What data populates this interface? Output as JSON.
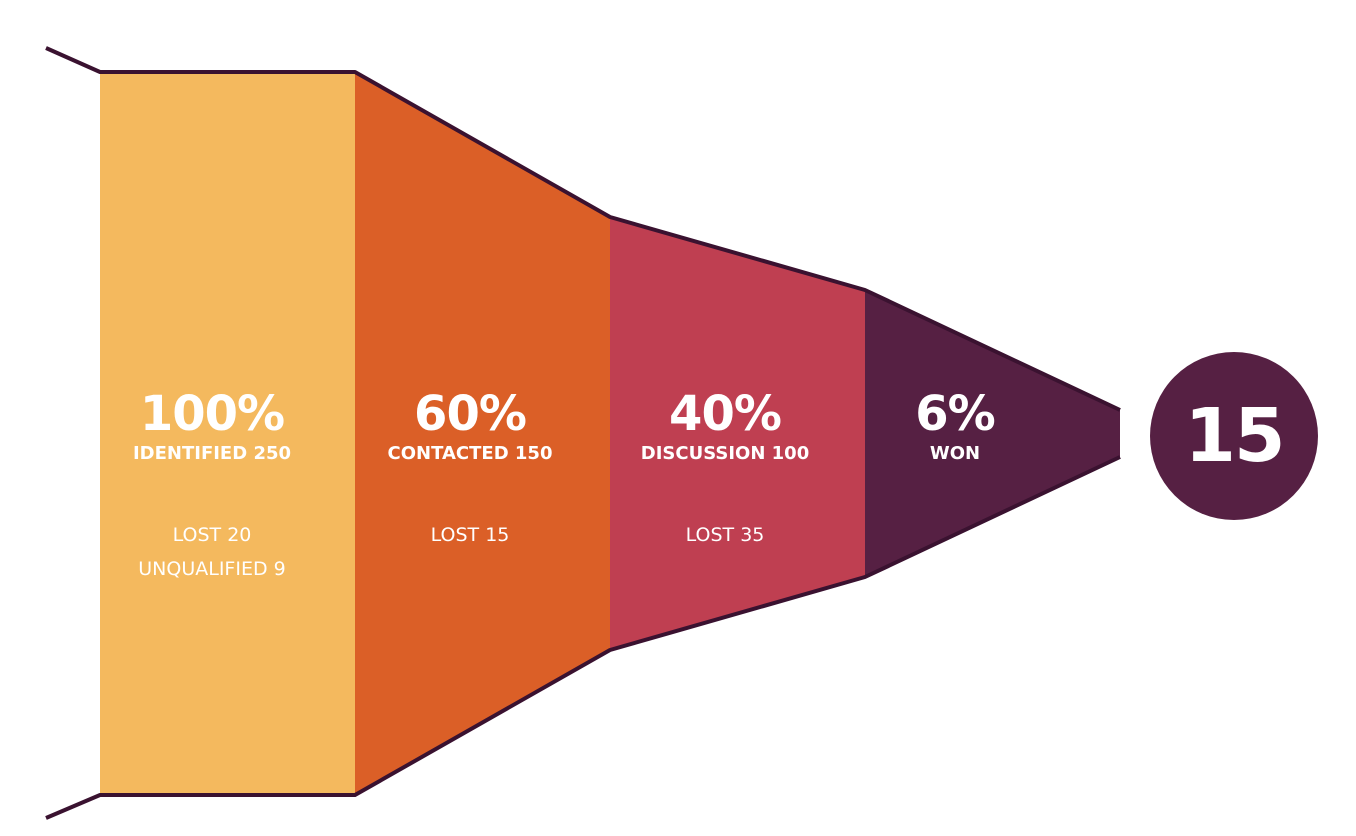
{
  "stages": [
    {
      "id": "identified",
      "percent": "100%",
      "label": "IDENTIFIED 250",
      "lost_lines": [
        "LOST 20",
        "UNQUALIFIED 9"
      ],
      "color": "#f4b95e"
    },
    {
      "id": "contacted",
      "percent": "60%",
      "label": "CONTACTED 150",
      "lost_lines": [
        "LOST 15"
      ],
      "color": "#db5f27"
    },
    {
      "id": "discussion",
      "percent": "40%",
      "label": "DISCUSSION 100",
      "lost_lines": [
        "LOST 35"
      ],
      "color": "#bf3f51"
    },
    {
      "id": "won",
      "percent": "6%",
      "label": "WON",
      "lost_lines": [],
      "color": "#562043"
    }
  ],
  "won_total": "15",
  "outline_color": "#3a1230"
}
